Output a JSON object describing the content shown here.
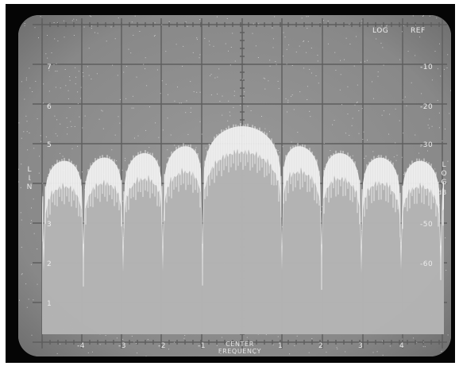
{
  "display": {
    "top_right_labels": [
      "LOG",
      "REF"
    ],
    "lin_scale": [
      "7",
      "6",
      "5",
      "4",
      "3",
      "2",
      "1"
    ],
    "log_scale": [
      "-10",
      "-20",
      "-30",
      "-40",
      "-50",
      "-60"
    ],
    "freq_scale": [
      "-4",
      "-3",
      "-2",
      "-1",
      "1",
      "2",
      "3",
      "4"
    ],
    "center_label": [
      "CENTER",
      "FREQUENCY"
    ],
    "left_axis_letters": [
      "L",
      "I",
      "N"
    ],
    "right_axis_letters": [
      "L",
      "O",
      "G"
    ],
    "right_axis_unit": "dB",
    "colors": {
      "frame": "#050505",
      "screen": "#8a8a8a",
      "trace": "#f2f2f2",
      "graticule": "#5a5a5a"
    }
  }
}
